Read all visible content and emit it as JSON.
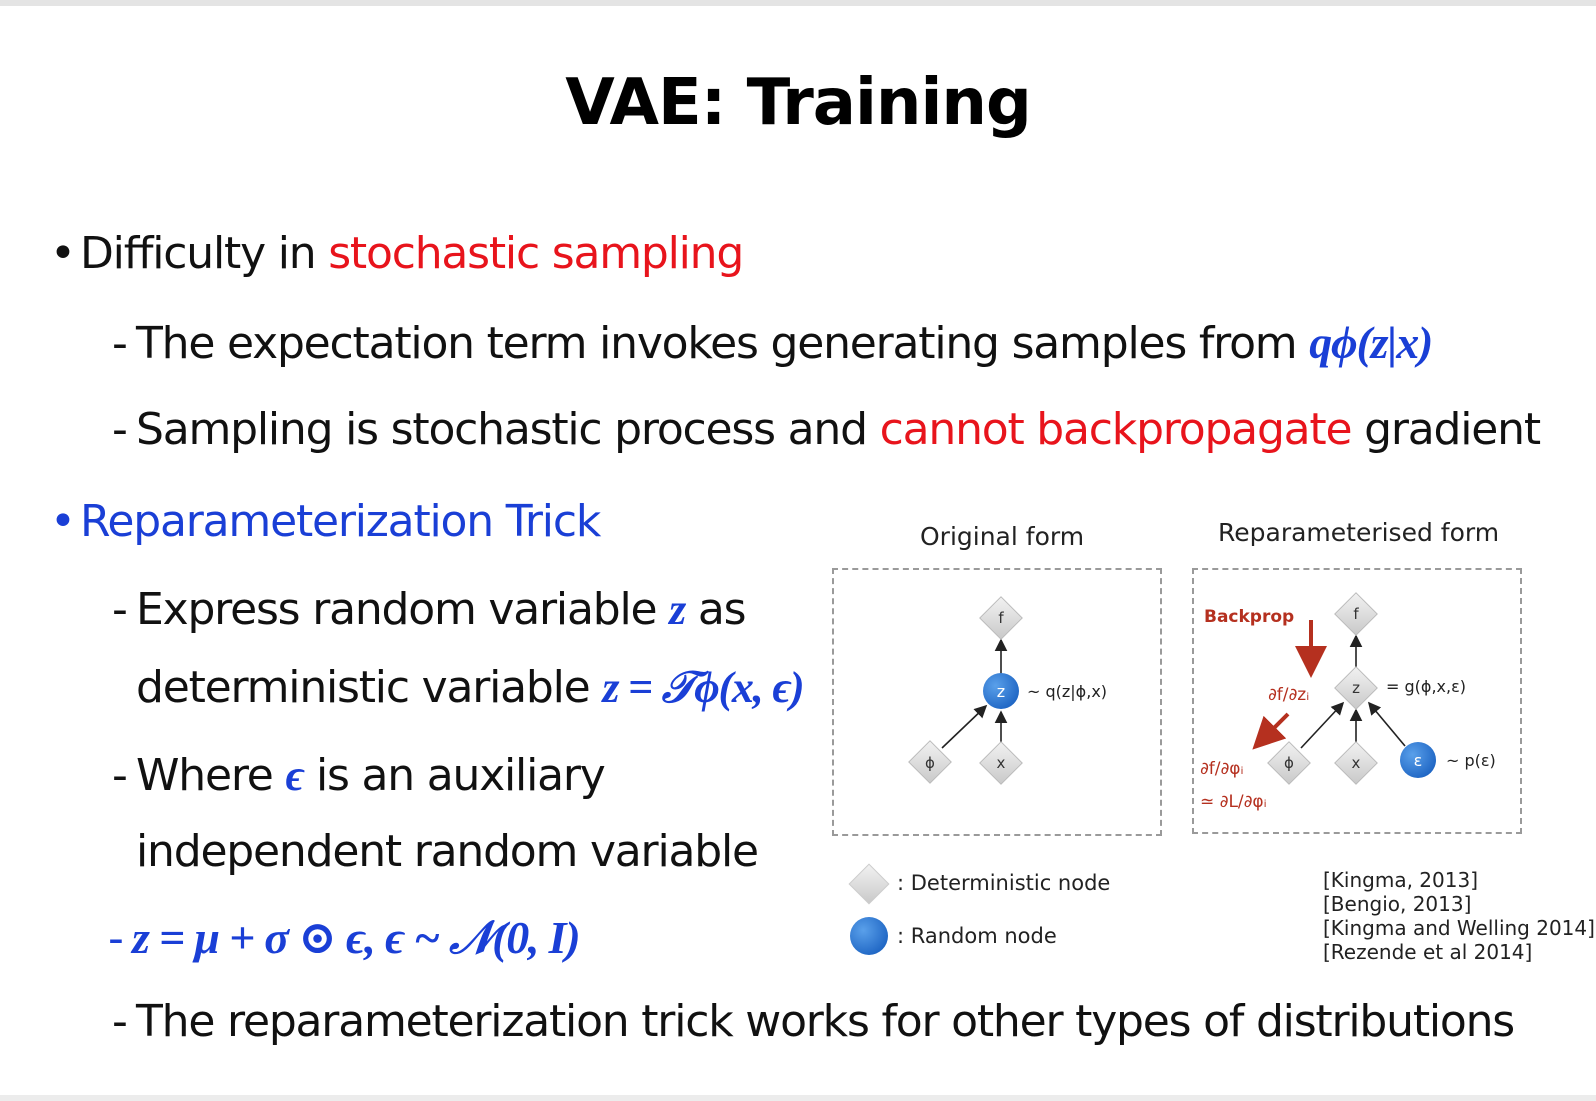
{
  "title": "VAE: Training",
  "bullet1": {
    "prefix": "Difficulty in ",
    "highlight": "stochastic sampling",
    "sub1_text": "The expectation term invokes generating samples from ",
    "sub1_math": "qϕ(z|x)",
    "sub2_prefix": "Sampling is stochastic process and ",
    "sub2_highlight": "cannot backpropagate",
    "sub2_suffix": " gradient"
  },
  "bullet2": {
    "label": "Reparameterization Trick",
    "sub1_line1_text": "Express random variable ",
    "sub1_line1_var": "z",
    "sub1_line1_suffix": " as",
    "sub1_line2_text": "deterministic variable ",
    "sub1_line2_math": "z = 𝒯ϕ(x, ϵ)",
    "sub2_line1_prefix": "Where ",
    "sub2_line1_var": "ϵ",
    "sub2_line1_suffix": " is an auxiliary",
    "sub2_line2": "independent random variable",
    "sub3_math": "z = μ + σ ⊙ ϵ, ϵ ~ 𝒩(0, I)",
    "sub4": "The reparameterization trick works for other types of distributions"
  },
  "figure": {
    "left_title": "Original form",
    "right_title": "Reparameterised form",
    "left": {
      "node_f": "f",
      "node_z": "z",
      "node_phi": "ϕ",
      "node_x": "x",
      "z_label": "~ q(z|ϕ,x)"
    },
    "right": {
      "backprop": "Backprop",
      "node_f": "f",
      "node_z": "z",
      "node_phi": "ϕ",
      "node_x": "x",
      "node_eps": "ε",
      "z_label": "= g(ϕ,x,ε)",
      "eps_label": "~ p(ε)",
      "grad_z": "∂f/∂zᵢ",
      "grad_phi": "∂f/∂φᵢ",
      "grad_L": "≃ ∂L/∂φᵢ"
    },
    "legend_deterministic": ": Deterministic node",
    "legend_random": ": Random node"
  },
  "references": [
    "[Kingma, 2013]",
    "[Bengio, 2013]",
    "[Kingma and Welling 2014]",
    "[Rezende et al 2014]"
  ],
  "colors": {
    "accent_red": "#e8141c",
    "accent_blue": "#1a3fd6",
    "node_blue": "#2b78d4",
    "backprop_red": "#b5301f",
    "node_gray": "#d9d9d9"
  }
}
